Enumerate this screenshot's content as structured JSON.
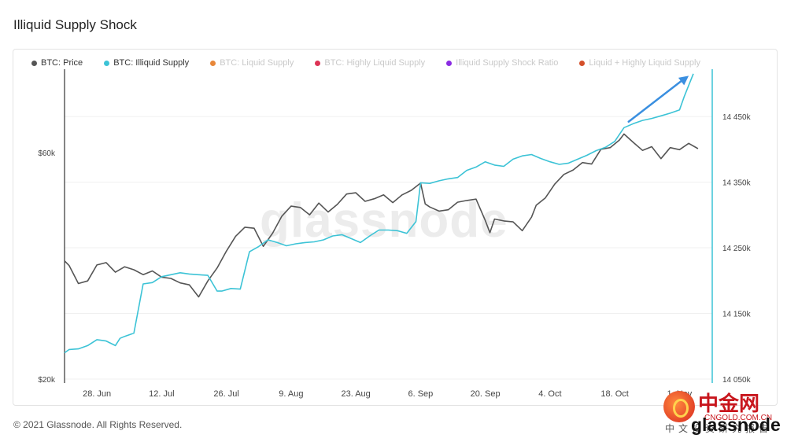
{
  "header": {
    "title": "Illiquid Supply Shock"
  },
  "footer": {
    "copyright": "© 2021 Glassnode. All Rights Reserved.",
    "brand": "glassnode"
  },
  "watermark": {
    "text": "glassnode"
  },
  "stamp": {
    "big": "中金网",
    "url": "CNGOLD.COM.CN",
    "line": "中文投资研究报告"
  },
  "legend": [
    {
      "label": "BTC: Price",
      "color": "#555555",
      "active": true
    },
    {
      "label": "BTC: Illiquid Supply",
      "color": "#3cc3d6",
      "active": true
    },
    {
      "label": "BTC: Liquid Supply",
      "color": "#e8873a",
      "active": false
    },
    {
      "label": "BTC: Highly Liquid Supply",
      "color": "#dd3355",
      "active": false
    },
    {
      "label": "Illiquid Supply Shock Ratio",
      "color": "#8a2be2",
      "active": false
    },
    {
      "label": "Liquid + Highly Liquid Supply",
      "color": "#d4502a",
      "active": false
    }
  ],
  "chart_data": {
    "type": "line",
    "x_tick_labels": [
      "28. Jun",
      "12. Jul",
      "26. Jul",
      "9. Aug",
      "23. Aug",
      "6. Sep",
      "20. Sep",
      "4. Oct",
      "18. Oct",
      "1. Nov"
    ],
    "y_left": {
      "scale": "log",
      "ticks": [
        "$60k",
        "$20k"
      ],
      "tick_values": [
        60000,
        20000
      ],
      "range": [
        20000,
        90000
      ]
    },
    "y_right": {
      "ticks": [
        "14 450k",
        "14 350k",
        "14 250k",
        "14 150k",
        "14 050k"
      ],
      "tick_values": [
        14450,
        14350,
        14250,
        14150,
        14050
      ],
      "range": [
        14050,
        14522
      ]
    },
    "series": [
      {
        "name": "BTC: Price",
        "color": "#555555",
        "axis": "left",
        "x": [
          "2021-06-21",
          "2021-06-22",
          "2021-06-24",
          "2021-06-26",
          "2021-06-28",
          "2021-06-30",
          "2021-07-02",
          "2021-07-04",
          "2021-07-06",
          "2021-07-08",
          "2021-07-10",
          "2021-07-12",
          "2021-07-14",
          "2021-07-16",
          "2021-07-18",
          "2021-07-20",
          "2021-07-22",
          "2021-07-24",
          "2021-07-26",
          "2021-07-28",
          "2021-07-30",
          "2021-08-01",
          "2021-08-03",
          "2021-08-05",
          "2021-08-07",
          "2021-08-09",
          "2021-08-11",
          "2021-08-13",
          "2021-08-15",
          "2021-08-17",
          "2021-08-19",
          "2021-08-21",
          "2021-08-23",
          "2021-08-25",
          "2021-08-27",
          "2021-08-29",
          "2021-08-31",
          "2021-09-02",
          "2021-09-04",
          "2021-09-06",
          "2021-09-07",
          "2021-09-08",
          "2021-09-10",
          "2021-09-12",
          "2021-09-14",
          "2021-09-16",
          "2021-09-18",
          "2021-09-20",
          "2021-09-21",
          "2021-09-22",
          "2021-09-24",
          "2021-09-26",
          "2021-09-28",
          "2021-09-30",
          "2021-10-01",
          "2021-10-03",
          "2021-10-05",
          "2021-10-07",
          "2021-10-09",
          "2021-10-11",
          "2021-10-13",
          "2021-10-15",
          "2021-10-17",
          "2021-10-19",
          "2021-10-20",
          "2021-10-22",
          "2021-10-24",
          "2021-10-26",
          "2021-10-28",
          "2021-10-30",
          "2021-11-01",
          "2021-11-03",
          "2021-11-05"
        ],
        "values": [
          35500,
          34700,
          31800,
          32200,
          34800,
          35200,
          33600,
          34500,
          34000,
          33200,
          33800,
          32800,
          32600,
          31900,
          31600,
          29800,
          32200,
          34300,
          37200,
          40000,
          41800,
          41600,
          38100,
          40600,
          44100,
          46300,
          46000,
          44400,
          47000,
          45000,
          46700,
          49100,
          49400,
          47400,
          48000,
          48900,
          47100,
          48900,
          50000,
          51800,
          46800,
          46100,
          45200,
          45500,
          47200,
          47600,
          47900,
          43200,
          40700,
          43500,
          43100,
          42900,
          41100,
          43900,
          46500,
          48200,
          51500,
          54000,
          55200,
          57200,
          56800,
          61000,
          61500,
          63800,
          65700,
          63100,
          60700,
          61800,
          58300,
          61500,
          60900,
          62800,
          61200
        ]
      },
      {
        "name": "BTC: Illiquid Supply",
        "color": "#3cc3d6",
        "axis": "right",
        "x": [
          "2021-06-21",
          "2021-06-22",
          "2021-06-24",
          "2021-06-26",
          "2021-06-28",
          "2021-06-30",
          "2021-07-02",
          "2021-07-03",
          "2021-07-04",
          "2021-07-06",
          "2021-07-08",
          "2021-07-10",
          "2021-07-12",
          "2021-07-14",
          "2021-07-16",
          "2021-07-18",
          "2021-07-20",
          "2021-07-22",
          "2021-07-24",
          "2021-07-25",
          "2021-07-27",
          "2021-07-29",
          "2021-07-31",
          "2021-08-02",
          "2021-08-04",
          "2021-08-06",
          "2021-08-08",
          "2021-08-10",
          "2021-08-12",
          "2021-08-14",
          "2021-08-16",
          "2021-08-18",
          "2021-08-20",
          "2021-08-22",
          "2021-08-24",
          "2021-08-26",
          "2021-08-28",
          "2021-08-30",
          "2021-09-01",
          "2021-09-03",
          "2021-09-05",
          "2021-09-06",
          "2021-09-08",
          "2021-09-10",
          "2021-09-12",
          "2021-09-14",
          "2021-09-16",
          "2021-09-18",
          "2021-09-20",
          "2021-09-22",
          "2021-09-24",
          "2021-09-26",
          "2021-09-28",
          "2021-09-30",
          "2021-10-02",
          "2021-10-04",
          "2021-10-06",
          "2021-10-08",
          "2021-10-10",
          "2021-10-12",
          "2021-10-14",
          "2021-10-16",
          "2021-10-18",
          "2021-10-20",
          "2021-10-22",
          "2021-10-24",
          "2021-10-26",
          "2021-10-28",
          "2021-10-30",
          "2021-11-01",
          "2021-11-02",
          "2021-11-04"
        ],
        "values": [
          14090,
          14095,
          14096,
          14101,
          14110,
          14108,
          14101,
          14112,
          14115,
          14120,
          14195,
          14197,
          14206,
          14209,
          14212,
          14210,
          14209,
          14208,
          14184,
          14184,
          14188,
          14187,
          14244,
          14252,
          14262,
          14258,
          14253,
          14256,
          14258,
          14259,
          14262,
          14268,
          14270,
          14264,
          14258,
          14268,
          14277,
          14277,
          14276,
          14272,
          14290,
          14349,
          14348,
          14352,
          14355,
          14357,
          14368,
          14373,
          14381,
          14376,
          14374,
          14385,
          14390,
          14392,
          14386,
          14381,
          14377,
          14379,
          14385,
          14391,
          14398,
          14403,
          14412,
          14433,
          14439,
          14444,
          14447,
          14451,
          14455,
          14460,
          14480,
          14515
        ]
      }
    ],
    "annotation": {
      "type": "arrow",
      "color": "#3a8fe0",
      "from": {
        "x": "2021-10-21",
        "y": 14442
      },
      "to": {
        "x": "2021-11-03",
        "y": 14512
      }
    }
  }
}
